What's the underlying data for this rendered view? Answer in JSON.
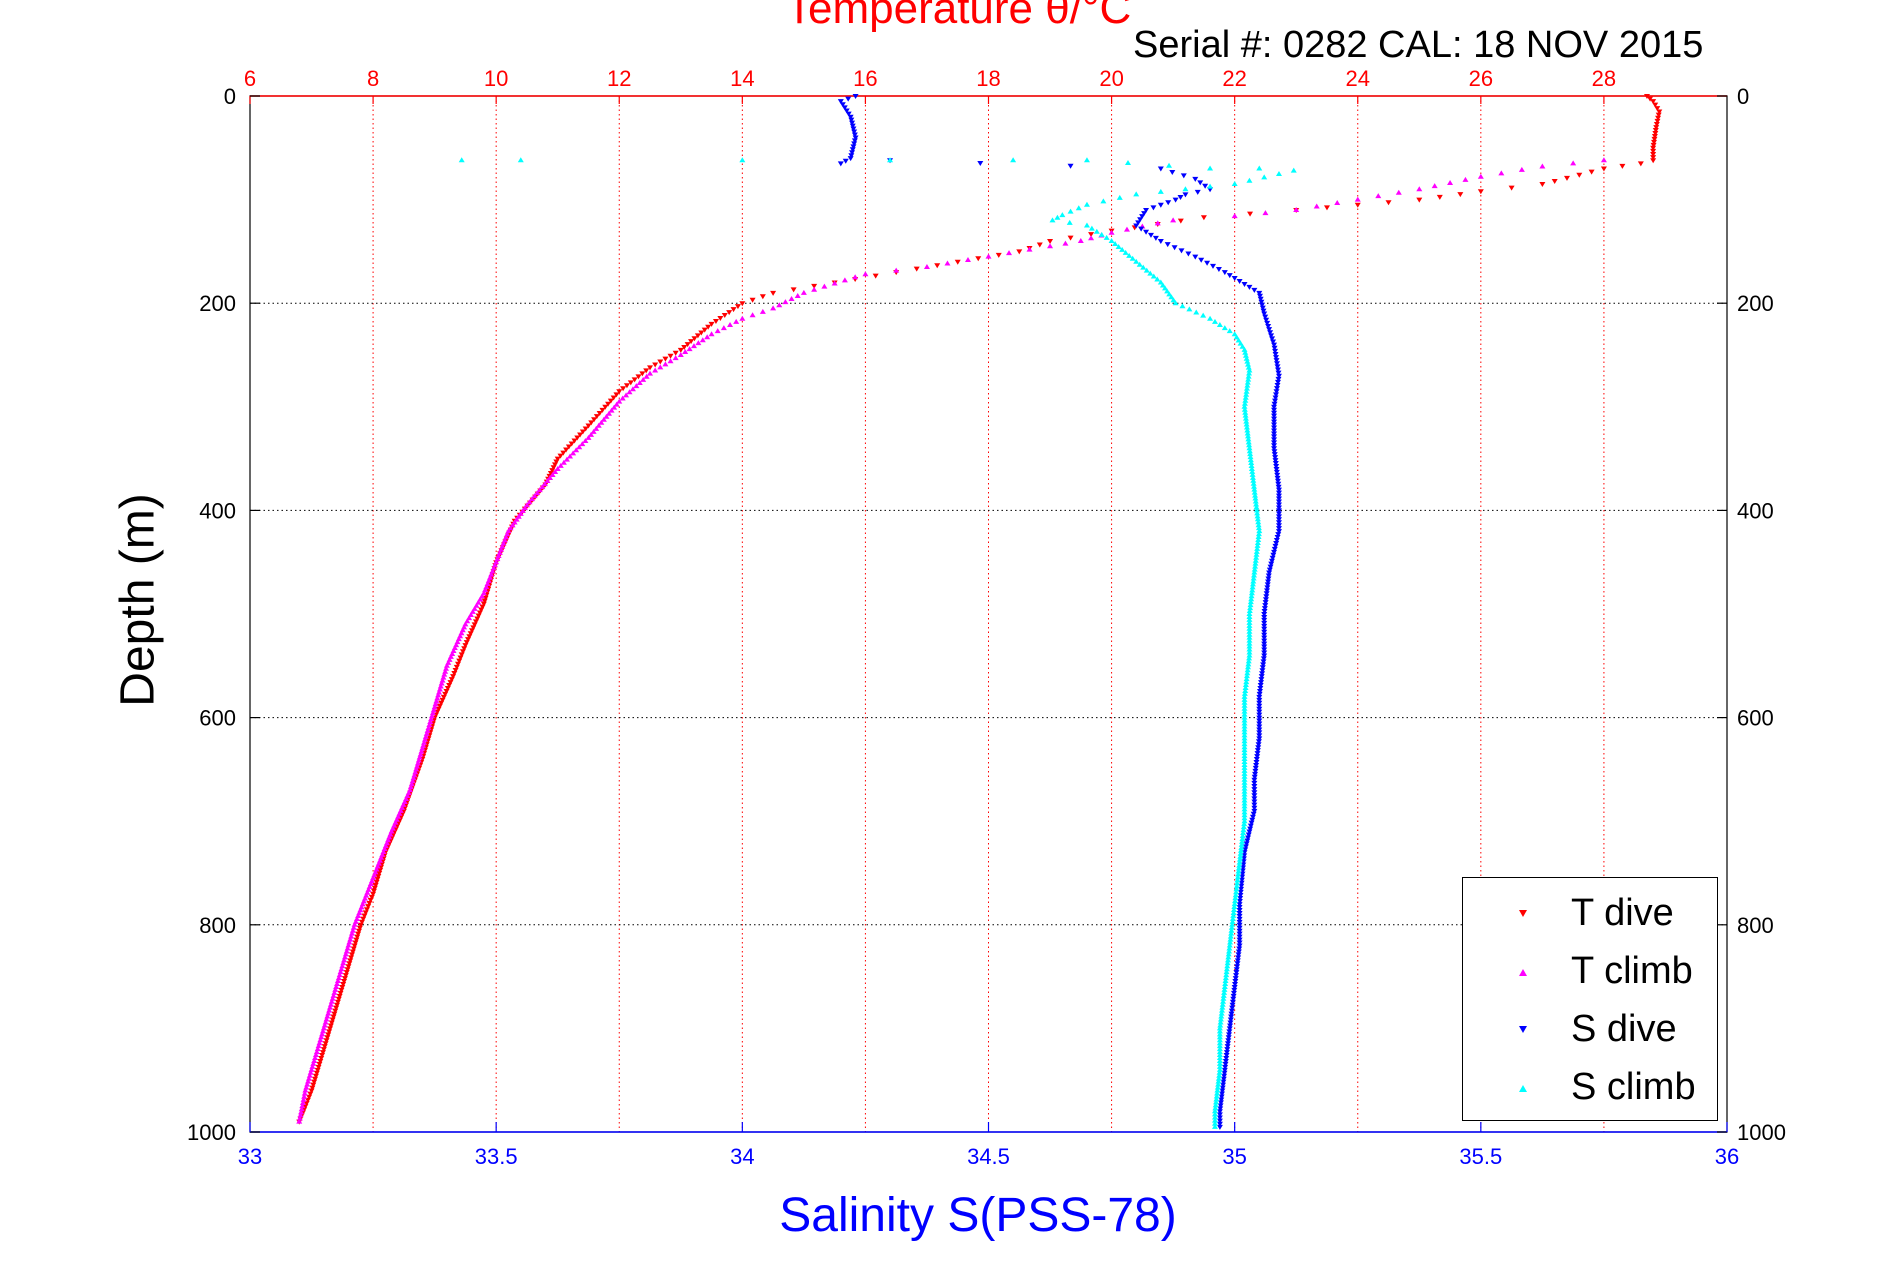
{
  "title": {
    "temperature": "Temperature θ/°C",
    "serial": "Serial #: 0282  CAL: 18 NOV 2015"
  },
  "axes": {
    "ylabel": "Depth (m)",
    "xlabel_bottom": "Salinity S(PSS-78)",
    "colors": {
      "temperature": "#ff0000",
      "salinity": "#0000ff",
      "depth": "#000000"
    }
  },
  "legend": {
    "items": [
      {
        "label": "T dive",
        "color": "#ff0000",
        "marker": "triangle-down"
      },
      {
        "label": "T climb",
        "color": "#ff00ff",
        "marker": "triangle-up"
      },
      {
        "label": "S dive",
        "color": "#0000ff",
        "marker": "triangle-down"
      },
      {
        "label": "S climb",
        "color": "#00ffff",
        "marker": "triangle-up"
      }
    ],
    "location": "bottom-right"
  },
  "chart_data": {
    "type": "scatter",
    "title": "Temperature θ/°C",
    "subtitle": "Serial #: 0282  CAL: 18 NOV 2015",
    "ylabel": "Depth (m)",
    "ylim": [
      0,
      1000
    ],
    "y_reversed": true,
    "yticks": [
      "0",
      "200",
      "400",
      "600",
      "800",
      "1000"
    ],
    "x_top": {
      "label": "Temperature θ/°C",
      "range": [
        6,
        30
      ],
      "ticks": [
        "6",
        "8",
        "10",
        "12",
        "14",
        "16",
        "18",
        "20",
        "22",
        "24",
        "26",
        "28"
      ]
    },
    "x_bottom": {
      "label": "Salinity S(PSS-78)",
      "range": [
        33,
        36
      ],
      "ticks": [
        "33",
        "33.5",
        "34",
        "34.5",
        "35",
        "35.5",
        "36"
      ]
    },
    "grid": true,
    "series": [
      {
        "name": "T dive",
        "axis": "temperature",
        "color": "#ff0000",
        "points": [
          [
            28.7,
            0
          ],
          [
            28.8,
            5
          ],
          [
            28.9,
            15
          ],
          [
            28.85,
            30
          ],
          [
            28.8,
            50
          ],
          [
            28.8,
            62
          ],
          [
            28.6,
            65
          ],
          [
            28,
            70
          ],
          [
            27,
            85
          ],
          [
            26,
            92
          ],
          [
            25,
            100
          ],
          [
            24,
            105
          ],
          [
            23,
            110
          ],
          [
            21.5,
            117
          ],
          [
            20,
            130
          ],
          [
            19,
            140
          ],
          [
            18.5,
            150
          ],
          [
            17.5,
            160
          ],
          [
            16.5,
            170
          ],
          [
            15.5,
            180
          ],
          [
            14.5,
            190
          ],
          [
            14,
            200
          ],
          [
            13.5,
            220
          ],
          [
            13,
            245
          ],
          [
            12.5,
            262
          ],
          [
            12,
            285
          ],
          [
            11.5,
            318
          ],
          [
            11,
            350
          ],
          [
            10.8,
            375
          ],
          [
            10.3,
            410
          ],
          [
            10,
            450
          ],
          [
            9.8,
            490
          ],
          [
            9.5,
            530
          ],
          [
            9.3,
            560
          ],
          [
            9,
            600
          ],
          [
            8.8,
            640
          ],
          [
            8.5,
            690
          ],
          [
            8.2,
            730
          ],
          [
            8,
            770
          ],
          [
            7.8,
            800
          ],
          [
            7.6,
            840
          ],
          [
            7.4,
            880
          ],
          [
            7.2,
            920
          ],
          [
            7,
            960
          ],
          [
            6.8,
            990
          ]
        ]
      },
      {
        "name": "T climb",
        "axis": "temperature",
        "color": "#ff00ff",
        "points": [
          [
            28,
            62
          ],
          [
            27,
            68
          ],
          [
            26,
            78
          ],
          [
            25,
            90
          ],
          [
            24,
            100
          ],
          [
            23,
            110
          ],
          [
            22,
            116
          ],
          [
            21,
            120
          ],
          [
            20,
            132
          ],
          [
            19.5,
            140
          ],
          [
            19,
            145
          ],
          [
            18,
            155
          ],
          [
            17,
            165
          ],
          [
            16,
            172
          ],
          [
            15,
            190
          ],
          [
            14.5,
            205
          ],
          [
            14,
            215
          ],
          [
            13.5,
            230
          ],
          [
            13,
            250
          ],
          [
            12.5,
            268
          ],
          [
            12,
            295
          ],
          [
            11.5,
            330
          ],
          [
            11,
            360
          ],
          [
            10.5,
            395
          ],
          [
            10.2,
            420
          ],
          [
            10,
            450
          ],
          [
            9.8,
            480
          ],
          [
            9.5,
            510
          ],
          [
            9.2,
            550
          ],
          [
            9,
            590
          ],
          [
            8.8,
            630
          ],
          [
            8.6,
            670
          ],
          [
            8.3,
            710
          ],
          [
            8,
            755
          ],
          [
            7.7,
            800
          ],
          [
            7.5,
            840
          ],
          [
            7.3,
            880
          ],
          [
            7.1,
            920
          ],
          [
            6.9,
            960
          ],
          [
            6.8,
            990
          ]
        ]
      },
      {
        "name": "S dive",
        "axis": "salinity",
        "color": "#0000ff",
        "points": [
          [
            34.23,
            0
          ],
          [
            34.2,
            5
          ],
          [
            34.22,
            20
          ],
          [
            34.23,
            40
          ],
          [
            34.22,
            60
          ],
          [
            34.2,
            65
          ],
          [
            34.3,
            62
          ],
          [
            34.85,
            70
          ],
          [
            34.92,
            80
          ],
          [
            34.95,
            90
          ],
          [
            34.9,
            95
          ],
          [
            34.88,
            100
          ],
          [
            34.85,
            105
          ],
          [
            34.82,
            110
          ],
          [
            34.8,
            125
          ],
          [
            34.85,
            140
          ],
          [
            34.92,
            155
          ],
          [
            34.98,
            170
          ],
          [
            35.05,
            190
          ],
          [
            35.06,
            210
          ],
          [
            35.08,
            240
          ],
          [
            35.09,
            270
          ],
          [
            35.08,
            300
          ],
          [
            35.08,
            340
          ],
          [
            35.09,
            380
          ],
          [
            35.09,
            420
          ],
          [
            35.07,
            460
          ],
          [
            35.06,
            500
          ],
          [
            35.06,
            540
          ],
          [
            35.05,
            580
          ],
          [
            35.05,
            620
          ],
          [
            35.04,
            660
          ],
          [
            35.04,
            690
          ],
          [
            35.02,
            730
          ],
          [
            35.01,
            780
          ],
          [
            35.01,
            820
          ],
          [
            35.0,
            860
          ],
          [
            34.99,
            900
          ],
          [
            34.98,
            940
          ],
          [
            34.97,
            980
          ],
          [
            34.97,
            995
          ]
        ]
      },
      {
        "name": "S climb",
        "axis": "salinity",
        "color": "#00ffff",
        "points": [
          [
            33.43,
            62
          ],
          [
            33.55,
            62
          ],
          [
            34.0,
            62
          ],
          [
            34.3,
            62
          ],
          [
            34.55,
            62
          ],
          [
            34.7,
            62
          ],
          [
            34.95,
            70
          ],
          [
            35.05,
            70
          ],
          [
            35.12,
            72
          ],
          [
            35.0,
            85
          ],
          [
            34.9,
            90
          ],
          [
            34.8,
            95
          ],
          [
            34.7,
            105
          ],
          [
            34.65,
            115
          ],
          [
            34.63,
            120
          ],
          [
            34.7,
            125
          ],
          [
            34.75,
            140
          ],
          [
            34.8,
            160
          ],
          [
            34.85,
            180
          ],
          [
            34.88,
            200
          ],
          [
            34.95,
            215
          ],
          [
            35.0,
            230
          ],
          [
            35.02,
            245
          ],
          [
            35.03,
            265
          ],
          [
            35.02,
            300
          ],
          [
            35.03,
            340
          ],
          [
            35.04,
            380
          ],
          [
            35.05,
            420
          ],
          [
            35.04,
            460
          ],
          [
            35.03,
            500
          ],
          [
            35.03,
            540
          ],
          [
            35.02,
            580
          ],
          [
            35.02,
            620
          ],
          [
            35.02,
            660
          ],
          [
            35.02,
            700
          ],
          [
            35.01,
            740
          ],
          [
            35.0,
            780
          ],
          [
            34.99,
            820
          ],
          [
            34.98,
            860
          ],
          [
            34.97,
            900
          ],
          [
            34.97,
            940
          ],
          [
            34.96,
            980
          ],
          [
            34.96,
            995
          ]
        ]
      }
    ]
  }
}
